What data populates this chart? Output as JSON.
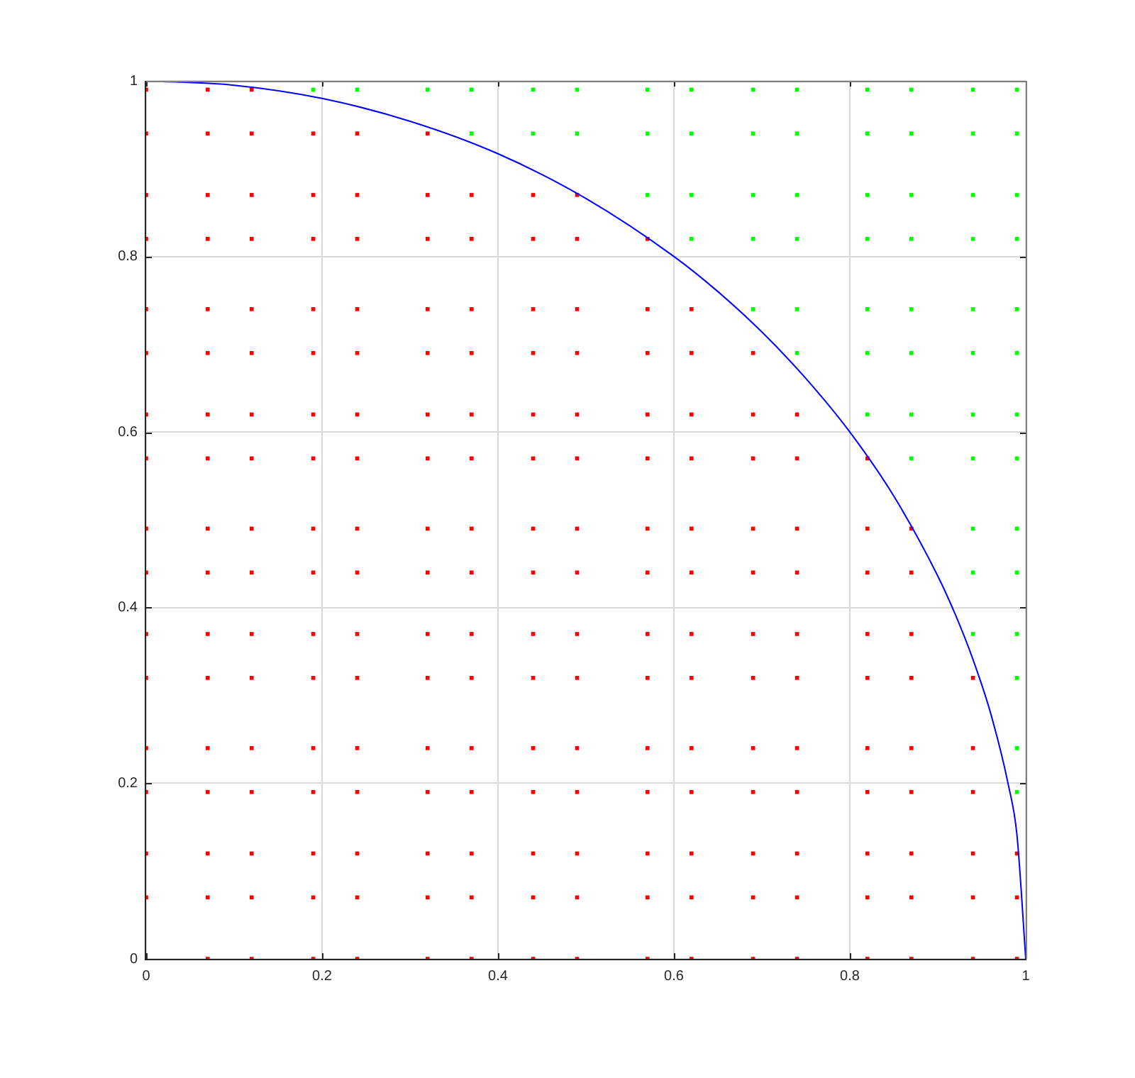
{
  "chart_data": {
    "type": "scatter",
    "xlim": [
      0,
      1
    ],
    "ylim": [
      0,
      1
    ],
    "xticks": [
      0,
      0.2,
      0.4,
      0.6,
      0.8,
      1
    ],
    "yticks": [
      0,
      0.2,
      0.4,
      0.6,
      0.8,
      1
    ],
    "grid": true,
    "legend": false,
    "series": [
      {
        "color": "#ff0000",
        "marker": "square",
        "x": [
          0,
          0,
          0,
          0,
          0,
          0,
          0,
          0,
          0,
          0,
          0,
          0,
          0,
          0,
          0,
          0,
          0.07,
          0.07,
          0.07,
          0.07,
          0.07,
          0.07,
          0.07,
          0.07,
          0.07,
          0.07,
          0.07,
          0.07,
          0.07,
          0.07,
          0.07,
          0.07,
          0.12,
          0.12,
          0.12,
          0.12,
          0.12,
          0.12,
          0.12,
          0.12,
          0.12,
          0.12,
          0.12,
          0.12,
          0.12,
          0.12,
          0.12,
          0.12,
          0.19,
          0.19,
          0.19,
          0.19,
          0.19,
          0.19,
          0.19,
          0.19,
          0.19,
          0.19,
          0.19,
          0.19,
          0.19,
          0.19,
          0.19,
          0.24,
          0.24,
          0.24,
          0.24,
          0.24,
          0.24,
          0.24,
          0.24,
          0.24,
          0.24,
          0.24,
          0.24,
          0.24,
          0.24,
          0.24,
          0.32,
          0.32,
          0.32,
          0.32,
          0.32,
          0.32,
          0.32,
          0.32,
          0.32,
          0.32,
          0.32,
          0.32,
          0.32,
          0.32,
          0.32,
          0.37,
          0.37,
          0.37,
          0.37,
          0.37,
          0.37,
          0.37,
          0.37,
          0.37,
          0.37,
          0.37,
          0.37,
          0.37,
          0.37,
          0.44,
          0.44,
          0.44,
          0.44,
          0.44,
          0.44,
          0.44,
          0.44,
          0.44,
          0.44,
          0.44,
          0.44,
          0.44,
          0.44,
          0.49,
          0.49,
          0.49,
          0.49,
          0.49,
          0.49,
          0.49,
          0.49,
          0.49,
          0.49,
          0.49,
          0.49,
          0.49,
          0.49,
          0.57,
          0.57,
          0.57,
          0.57,
          0.57,
          0.57,
          0.57,
          0.57,
          0.57,
          0.57,
          0.57,
          0.57,
          0.57,
          0.62,
          0.62,
          0.62,
          0.62,
          0.62,
          0.62,
          0.62,
          0.62,
          0.62,
          0.62,
          0.62,
          0.62,
          0.69,
          0.69,
          0.69,
          0.69,
          0.69,
          0.69,
          0.69,
          0.69,
          0.69,
          0.69,
          0.69,
          0.74,
          0.74,
          0.74,
          0.74,
          0.74,
          0.74,
          0.74,
          0.74,
          0.74,
          0.74,
          0.82,
          0.82,
          0.82,
          0.82,
          0.82,
          0.82,
          0.82,
          0.82,
          0.82,
          0.87,
          0.87,
          0.87,
          0.87,
          0.87,
          0.87,
          0.87,
          0.87,
          0.94,
          0.94,
          0.94,
          0.94,
          0.94,
          0.99,
          0.99,
          0.07,
          0.12,
          0.19,
          0.24,
          0.32,
          0.37,
          0.44,
          0.49,
          0.57,
          0.62,
          0.69,
          0.74,
          0.82,
          0.87,
          0.94,
          0.99
        ],
        "values": [
          0.07,
          0.12,
          0.19,
          0.24,
          0.32,
          0.37,
          0.44,
          0.49,
          0.57,
          0.62,
          0.69,
          0.74,
          0.82,
          0.87,
          0.94,
          0.99,
          0.07,
          0.12,
          0.19,
          0.24,
          0.32,
          0.37,
          0.44,
          0.49,
          0.57,
          0.62,
          0.69,
          0.74,
          0.82,
          0.87,
          0.94,
          0.99,
          0.07,
          0.12,
          0.19,
          0.24,
          0.32,
          0.37,
          0.44,
          0.49,
          0.57,
          0.62,
          0.69,
          0.74,
          0.82,
          0.87,
          0.94,
          0.99,
          0.07,
          0.12,
          0.19,
          0.24,
          0.32,
          0.37,
          0.44,
          0.49,
          0.57,
          0.62,
          0.69,
          0.74,
          0.82,
          0.87,
          0.94,
          0.07,
          0.12,
          0.19,
          0.24,
          0.32,
          0.37,
          0.44,
          0.49,
          0.57,
          0.62,
          0.69,
          0.74,
          0.82,
          0.87,
          0.94,
          0.07,
          0.12,
          0.19,
          0.24,
          0.32,
          0.37,
          0.44,
          0.49,
          0.57,
          0.62,
          0.69,
          0.74,
          0.82,
          0.87,
          0.94,
          0.07,
          0.12,
          0.19,
          0.24,
          0.32,
          0.37,
          0.44,
          0.49,
          0.57,
          0.62,
          0.69,
          0.74,
          0.82,
          0.87,
          0.07,
          0.12,
          0.19,
          0.24,
          0.32,
          0.37,
          0.44,
          0.49,
          0.57,
          0.62,
          0.69,
          0.74,
          0.82,
          0.87,
          0.07,
          0.12,
          0.19,
          0.24,
          0.32,
          0.37,
          0.44,
          0.49,
          0.57,
          0.62,
          0.69,
          0.74,
          0.82,
          0.87,
          0.07,
          0.12,
          0.19,
          0.24,
          0.32,
          0.37,
          0.44,
          0.49,
          0.57,
          0.62,
          0.69,
          0.74,
          0.82,
          0.07,
          0.12,
          0.19,
          0.24,
          0.32,
          0.37,
          0.44,
          0.49,
          0.57,
          0.62,
          0.69,
          0.74,
          0.07,
          0.12,
          0.19,
          0.24,
          0.32,
          0.37,
          0.44,
          0.49,
          0.57,
          0.62,
          0.69,
          0.07,
          0.12,
          0.19,
          0.24,
          0.32,
          0.37,
          0.44,
          0.49,
          0.57,
          0.62,
          0.07,
          0.12,
          0.19,
          0.24,
          0.32,
          0.37,
          0.44,
          0.49,
          0.57,
          0.07,
          0.12,
          0.19,
          0.24,
          0.32,
          0.37,
          0.44,
          0.49,
          0.07,
          0.12,
          0.19,
          0.24,
          0.32,
          0.07,
          0.12,
          0,
          0,
          0,
          0,
          0,
          0,
          0,
          0,
          0,
          0,
          0,
          0,
          0,
          0,
          0,
          0
        ]
      },
      {
        "color": "#00ff00",
        "marker": "square",
        "x": [
          0.19,
          0.24,
          0.32,
          0.37,
          0.37,
          0.44,
          0.44,
          0.49,
          0.49,
          0.57,
          0.57,
          0.57,
          0.62,
          0.62,
          0.62,
          0.62,
          0.69,
          0.69,
          0.69,
          0.69,
          0.69,
          0.74,
          0.74,
          0.74,
          0.74,
          0.74,
          0.74,
          0.82,
          0.82,
          0.82,
          0.82,
          0.82,
          0.82,
          0.82,
          0.87,
          0.87,
          0.87,
          0.87,
          0.87,
          0.87,
          0.87,
          0.87,
          0.94,
          0.94,
          0.94,
          0.94,
          0.94,
          0.94,
          0.94,
          0.94,
          0.94,
          0.94,
          0.94,
          0.99,
          0.99,
          0.99,
          0.99,
          0.99,
          0.99,
          0.99,
          0.99,
          0.99,
          0.99,
          0.99,
          0.99,
          0.99,
          0.99
        ],
        "values": [
          0.99,
          0.99,
          0.99,
          0.94,
          0.99,
          0.94,
          0.99,
          0.94,
          0.99,
          0.87,
          0.94,
          0.99,
          0.82,
          0.87,
          0.94,
          0.99,
          0.74,
          0.82,
          0.87,
          0.94,
          0.99,
          0.69,
          0.74,
          0.82,
          0.87,
          0.94,
          0.99,
          0.62,
          0.69,
          0.74,
          0.82,
          0.87,
          0.94,
          0.99,
          0.57,
          0.62,
          0.69,
          0.74,
          0.82,
          0.87,
          0.94,
          0.99,
          0.37,
          0.44,
          0.49,
          0.57,
          0.62,
          0.69,
          0.74,
          0.82,
          0.87,
          0.94,
          0.99,
          0.19,
          0.24,
          0.32,
          0.37,
          0.44,
          0.49,
          0.57,
          0.62,
          0.69,
          0.74,
          0.82,
          0.87,
          0.94,
          0.99
        ]
      },
      {
        "type": "line",
        "color": "#0000ff",
        "marker": "none",
        "line_style": "solid",
        "x": [
          0,
          0.1,
          0.2,
          0.3,
          0.4,
          0.5,
          0.6,
          0.65,
          0.7,
          0.75,
          0.8,
          0.85,
          0.9,
          0.92,
          0.94,
          0.96,
          0.98,
          0.99,
          1
        ],
        "values": [
          1,
          0.995,
          0.98,
          0.954,
          0.917,
          0.866,
          0.8,
          0.76,
          0.714,
          0.661,
          0.6,
          0.527,
          0.436,
          0.392,
          0.341,
          0.28,
          0.199,
          0.141,
          0
        ]
      }
    ]
  }
}
